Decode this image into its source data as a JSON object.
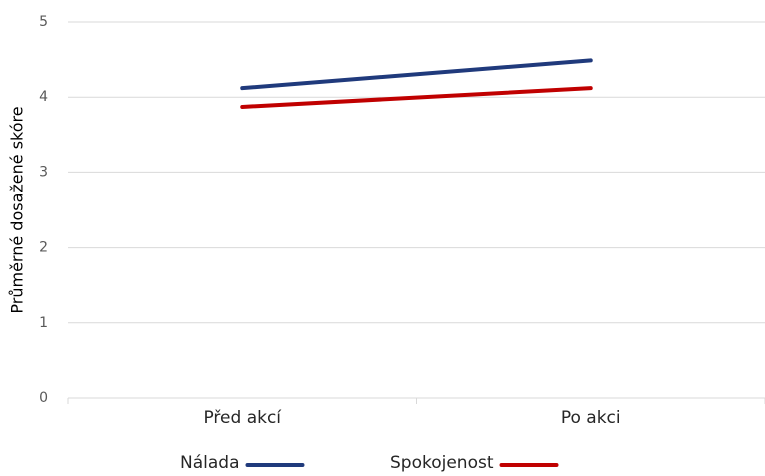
{
  "chart_data": {
    "type": "line",
    "y_label": "Průměrné dosažené skóre",
    "categories": [
      "Před akcí",
      "Po akci"
    ],
    "series": [
      {
        "name": "Nálada",
        "color": "#203a7c",
        "values": [
          4.12,
          4.49
        ]
      },
      {
        "name": "Spokojenost",
        "color": "#c00000",
        "values": [
          3.87,
          4.12
        ]
      }
    ],
    "ylim": [
      0,
      5
    ],
    "yticks": [
      0,
      1,
      2,
      3,
      4,
      5
    ],
    "grid": true,
    "legend": "bottom"
  }
}
